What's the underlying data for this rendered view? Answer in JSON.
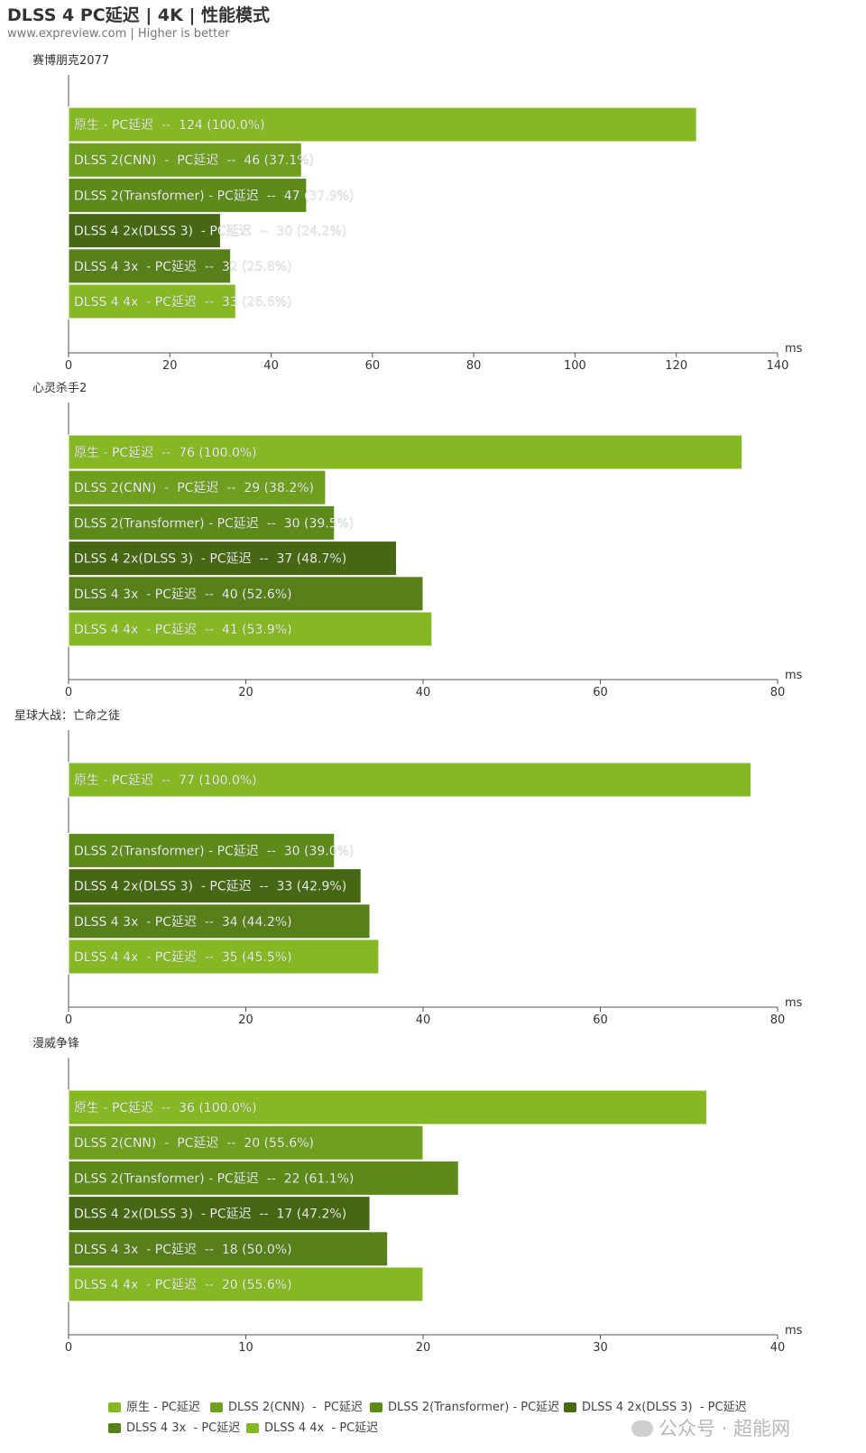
{
  "title": "DLSS 4 PC延迟 | 4K | 性能模式",
  "subtitle": "www.expreview.com | Higher is better",
  "colors": {
    "native": "#86b824",
    "cnn": "#6f9f1f",
    "transformer": "#5d8b1a",
    "dlss3": "#476813",
    "3x": "#577f1a",
    "4x": "#86b824",
    "axis": "#555555",
    "bar_text": "#ffffff"
  },
  "legend": [
    {
      "label": "原生 - PC延迟",
      "color": "#86b824"
    },
    {
      "label": "DLSS 2(CNN)  -  PC延迟",
      "color": "#6f9f1f"
    },
    {
      "label": "DLSS 2(Transformer) - PC延迟",
      "color": "#5d8b1a"
    },
    {
      "label": "DLSS 4 2x(DLSS 3)  - PC延迟",
      "color": "#476813"
    },
    {
      "label": "DLSS 4 3x  - PC延迟",
      "color": "#577f1a"
    },
    {
      "label": "DLSS 4 4x  - PC延迟",
      "color": "#86b824"
    }
  ],
  "watermark": "公众号 · 超能网",
  "chart_data": [
    {
      "type": "bar",
      "orientation": "horizontal",
      "title": "赛博朋克2077",
      "xlabel": "ms",
      "xlim": [
        0,
        140
      ],
      "xticks": [
        "0",
        "20",
        "40",
        "60",
        "80",
        "100",
        "120",
        "140"
      ],
      "series": [
        {
          "name": "原生 - PC延迟",
          "value": 124,
          "label": "原生 - PC延迟  --  124 (100.0%)",
          "color": "#86b824"
        },
        {
          "name": "DLSS 2(CNN)  -  PC延迟",
          "value": 46,
          "label": "DLSS 2(CNN)  -  PC延迟  --  46 (37.1%)",
          "color": "#6f9f1f"
        },
        {
          "name": "DLSS 2(Transformer) - PC延迟",
          "value": 47,
          "label": "DLSS 2(Transformer) - PC延迟  --  47 (37.9%)",
          "color": "#5d8b1a"
        },
        {
          "name": "DLSS 4 2x(DLSS 3)  - PC延迟",
          "value": 30,
          "label": "DLSS 4 2x(DLSS 3)  - PC延迟  --  30 (24.2%)",
          "color": "#476813"
        },
        {
          "name": "DLSS 4 3x  - PC延迟",
          "value": 32,
          "label": "DLSS 4 3x  - PC延迟  --  32 (25.8%)",
          "color": "#577f1a"
        },
        {
          "name": "DLSS 4 4x  - PC延迟",
          "value": 33,
          "label": "DLSS 4 4x  - PC延迟  --  33 (26.6%)",
          "color": "#86b824"
        }
      ]
    },
    {
      "type": "bar",
      "orientation": "horizontal",
      "title": "心灵杀手2",
      "xlabel": "ms",
      "xlim": [
        0,
        80
      ],
      "xticks": [
        "0",
        "20",
        "40",
        "60",
        "80"
      ],
      "series": [
        {
          "name": "原生 - PC延迟",
          "value": 76,
          "label": "原生 - PC延迟  --  76 (100.0%)",
          "color": "#86b824"
        },
        {
          "name": "DLSS 2(CNN)  -  PC延迟",
          "value": 29,
          "label": "DLSS 2(CNN)  -  PC延迟  --  29 (38.2%)",
          "color": "#6f9f1f"
        },
        {
          "name": "DLSS 2(Transformer) - PC延迟",
          "value": 30,
          "label": "DLSS 2(Transformer) - PC延迟  --  30 (39.5%)",
          "color": "#5d8b1a"
        },
        {
          "name": "DLSS 4 2x(DLSS 3)  - PC延迟",
          "value": 37,
          "label": "DLSS 4 2x(DLSS 3)  - PC延迟  --  37 (48.7%)",
          "color": "#476813"
        },
        {
          "name": "DLSS 4 3x  - PC延迟",
          "value": 40,
          "label": "DLSS 4 3x  - PC延迟  --  40 (52.6%)",
          "color": "#577f1a"
        },
        {
          "name": "DLSS 4 4x  - PC延迟",
          "value": 41,
          "label": "DLSS 4 4x  - PC延迟  --  41 (53.9%)",
          "color": "#86b824"
        }
      ]
    },
    {
      "type": "bar",
      "orientation": "horizontal",
      "title": "星球大战：亡命之徒",
      "xlabel": "ms",
      "xlim": [
        0,
        80
      ],
      "xticks": [
        "0",
        "20",
        "40",
        "60",
        "80"
      ],
      "series": [
        {
          "name": "原生 - PC延迟",
          "value": 77,
          "label": "原生 - PC延迟  --  77 (100.0%)",
          "color": "#86b824"
        },
        {
          "name": "DLSS 2(CNN)  -  PC延迟",
          "value": null,
          "label": "",
          "color": "#6f9f1f"
        },
        {
          "name": "DLSS 2(Transformer) - PC延迟",
          "value": 30,
          "label": "DLSS 2(Transformer) - PC延迟  --  30 (39.0%)",
          "color": "#5d8b1a"
        },
        {
          "name": "DLSS 4 2x(DLSS 3)  - PC延迟",
          "value": 33,
          "label": "DLSS 4 2x(DLSS 3)  - PC延迟  --  33 (42.9%)",
          "color": "#476813"
        },
        {
          "name": "DLSS 4 3x  - PC延迟",
          "value": 34,
          "label": "DLSS 4 3x  - PC延迟  --  34 (44.2%)",
          "color": "#577f1a"
        },
        {
          "name": "DLSS 4 4x  - PC延迟",
          "value": 35,
          "label": "DLSS 4 4x  - PC延迟  --  35 (45.5%)",
          "color": "#86b824"
        }
      ]
    },
    {
      "type": "bar",
      "orientation": "horizontal",
      "title": "漫威争锋",
      "xlabel": "ms",
      "xlim": [
        0,
        40
      ],
      "xticks": [
        "0",
        "10",
        "20",
        "30",
        "40"
      ],
      "series": [
        {
          "name": "原生 - PC延迟",
          "value": 36,
          "label": "原生 - PC延迟  --  36 (100.0%)",
          "color": "#86b824"
        },
        {
          "name": "DLSS 2(CNN)  -  PC延迟",
          "value": 20,
          "label": "DLSS 2(CNN)  -  PC延迟  --  20 (55.6%)",
          "color": "#6f9f1f"
        },
        {
          "name": "DLSS 2(Transformer) - PC延迟",
          "value": 22,
          "label": "DLSS 2(Transformer) - PC延迟  --  22 (61.1%)",
          "color": "#5d8b1a"
        },
        {
          "name": "DLSS 4 2x(DLSS 3)  - PC延迟",
          "value": 17,
          "label": "DLSS 4 2x(DLSS 3)  - PC延迟  --  17 (47.2%)",
          "color": "#476813"
        },
        {
          "name": "DLSS 4 3x  - PC延迟",
          "value": 18,
          "label": "DLSS 4 3x  - PC延迟  --  18 (50.0%)",
          "color": "#577f1a"
        },
        {
          "name": "DLSS 4 4x  - PC延迟",
          "value": 20,
          "label": "DLSS 4 4x  - PC延迟  --  20 (55.6%)",
          "color": "#86b824"
        }
      ]
    }
  ]
}
